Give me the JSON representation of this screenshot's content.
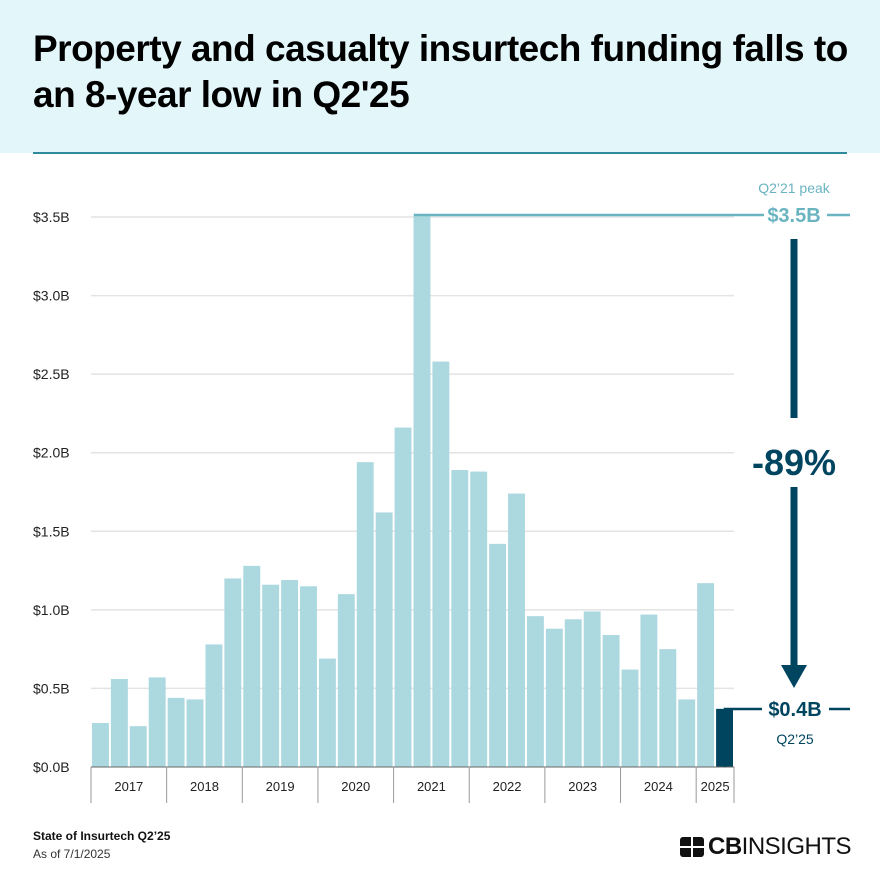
{
  "header": {
    "title": "Property and casualty insurtech funding falls to an 8-year low in Q2'25"
  },
  "footer": {
    "source": "State of Insurtech Q2’25",
    "as_of": "As of 7/1/2025",
    "logo": "CBINSIGHTS"
  },
  "annotations": {
    "peak_label": "Q2’21 peak",
    "peak_value": "$3.5B",
    "change": "-89%",
    "low_value": "$0.4B",
    "low_label": "Q2’25"
  },
  "colors": {
    "bar": "#acd8e0",
    "highlight": "#004560",
    "peak": "#6ab4c2",
    "header_bg": "#e3f6fa"
  },
  "chart_data": {
    "type": "bar",
    "ylim": [
      0,
      3.5
    ],
    "grid": true,
    "ytick_labels": [
      "$0.0B",
      "$0.5B",
      "$1.0B",
      "$1.5B",
      "$2.0B",
      "$2.5B",
      "$3.0B",
      "$3.5B"
    ],
    "ytick_values": [
      0,
      0.5,
      1,
      1.5,
      2,
      2.5,
      3,
      3.5
    ],
    "year_labels": [
      "2017",
      "2018",
      "2019",
      "2020",
      "2021",
      "2022",
      "2023",
      "2024",
      "2025"
    ],
    "quarters_per_year": [
      4,
      4,
      4,
      4,
      4,
      4,
      4,
      4,
      2
    ],
    "values": [
      0.28,
      0.56,
      0.26,
      0.57,
      0.44,
      0.43,
      0.78,
      1.2,
      1.28,
      1.16,
      1.19,
      1.15,
      0.69,
      1.1,
      1.94,
      1.62,
      2.16,
      3.52,
      2.58,
      1.89,
      1.88,
      1.42,
      1.74,
      0.96,
      0.88,
      0.94,
      0.99,
      0.84,
      0.62,
      0.97,
      0.75,
      0.43,
      1.17,
      0.37
    ],
    "highlight_index": 33,
    "peak_index": 17
  }
}
